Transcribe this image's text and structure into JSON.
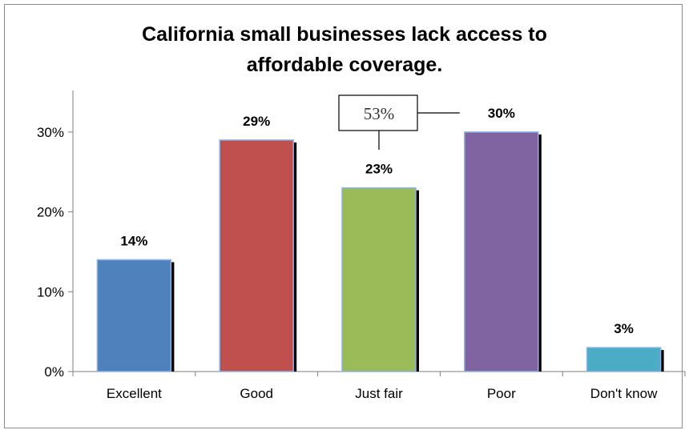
{
  "chart_data": {
    "type": "bar",
    "title_lines": [
      "California small businesses lack access to",
      "affordable coverage."
    ],
    "categories": [
      "Excellent",
      "Good",
      "Just fair",
      "Poor",
      "Don't know"
    ],
    "values": [
      14,
      29,
      23,
      30,
      3
    ],
    "data_labels": [
      "14%",
      "29%",
      "23%",
      "30%",
      "3%"
    ],
    "colors": [
      "#4f81bd",
      "#c0504d",
      "#9bbb59",
      "#8064a2",
      "#4bacc6"
    ],
    "yticks": [
      0,
      10,
      20,
      30
    ],
    "ytick_labels": [
      "0%",
      "10%",
      "20%",
      "30%"
    ],
    "ylim": [
      0,
      35
    ],
    "xlabel": "",
    "ylabel": "",
    "grid": false,
    "legend": "none",
    "annotation": {
      "text": "53%",
      "spans": [
        "Just fair",
        "Poor"
      ]
    }
  }
}
